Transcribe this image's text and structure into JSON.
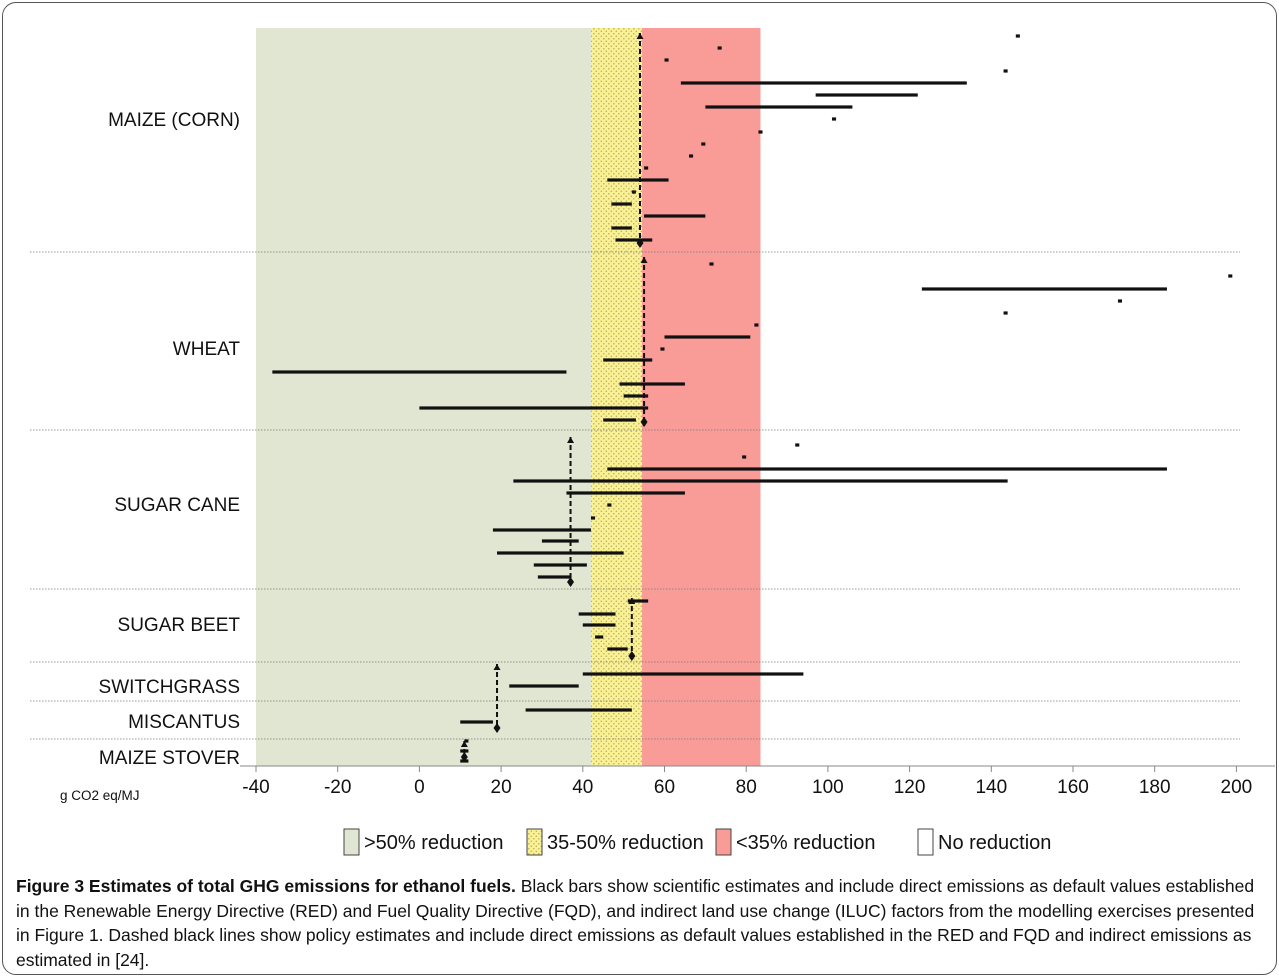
{
  "chart_data": {
    "type": "range-bar",
    "x_axis": {
      "unit_label": "g CO2 eq/MJ",
      "min": -40,
      "max": 200,
      "ticks": [
        -40,
        -20,
        0,
        20,
        40,
        60,
        80,
        100,
        120,
        140,
        160,
        180,
        200
      ]
    },
    "zones": [
      {
        "name": ">50% reduction",
        "from": -40,
        "to": 42,
        "color": "#e0e6d1",
        "pattern": "none"
      },
      {
        "name": "35-50% reduction",
        "from": 42,
        "to": 54.5,
        "color": "#faf195",
        "pattern": "dots"
      },
      {
        "name": "<35% reduction",
        "from": 54.5,
        "to": 83.5,
        "color": "#f99c98",
        "pattern": "none"
      },
      {
        "name": "No reduction",
        "from": 83.5,
        "to": 200,
        "color": "#ffffff",
        "pattern": "none"
      }
    ],
    "groups": [
      {
        "label": "MAIZE (CORN)",
        "policy_value": 54,
        "estimates": [
          {
            "from": 146,
            "to": 147
          },
          {
            "from": 73,
            "to": 74
          },
          {
            "from": 60,
            "to": 61
          },
          {
            "from": 143,
            "to": 144
          },
          {
            "from": 64,
            "to": 134
          },
          {
            "from": 97,
            "to": 122
          },
          {
            "from": 70,
            "to": 106
          },
          {
            "from": 101,
            "to": 102
          },
          {
            "from": 83,
            "to": 84
          },
          {
            "from": 69,
            "to": 70
          },
          {
            "from": 66,
            "to": 67
          },
          {
            "from": 55,
            "to": 56
          },
          {
            "from": 46,
            "to": 61
          },
          {
            "from": 52,
            "to": 53
          },
          {
            "from": 47,
            "to": 52
          },
          {
            "from": 55,
            "to": 70
          },
          {
            "from": 47,
            "to": 52
          },
          {
            "from": 48,
            "to": 57
          }
        ]
      },
      {
        "label": "WHEAT",
        "policy_value": 55,
        "estimates": [
          {
            "from": 71,
            "to": 72
          },
          {
            "from": 198,
            "to": 199
          },
          {
            "from": 123,
            "to": 183
          },
          {
            "from": 171,
            "to": 172
          },
          {
            "from": 143,
            "to": 144
          },
          {
            "from": 82,
            "to": 83
          },
          {
            "from": 60,
            "to": 81
          },
          {
            "from": 59,
            "to": 60
          },
          {
            "from": 45,
            "to": 57
          },
          {
            "from": -36,
            "to": 36
          },
          {
            "from": 49,
            "to": 65
          },
          {
            "from": 50,
            "to": 56
          },
          {
            "from": 0,
            "to": 56
          },
          {
            "from": 45,
            "to": 53
          }
        ]
      },
      {
        "label": "SUGAR CANE",
        "policy_value": 37,
        "estimates": [
          {
            "from": 92,
            "to": 93
          },
          {
            "from": 79,
            "to": 80
          },
          {
            "from": 46,
            "to": 183
          },
          {
            "from": 23,
            "to": 144
          },
          {
            "from": 36,
            "to": 65
          },
          {
            "from": 46,
            "to": 47
          },
          {
            "from": 42,
            "to": 43
          },
          {
            "from": 18,
            "to": 42
          },
          {
            "from": 30,
            "to": 39
          },
          {
            "from": 19,
            "to": 50
          },
          {
            "from": 28,
            "to": 41
          },
          {
            "from": 29,
            "to": 37
          }
        ]
      },
      {
        "label": "SUGAR BEET",
        "policy_value": 52,
        "estimates": [
          {
            "from": 51,
            "to": 56
          },
          {
            "from": 39,
            "to": 48
          },
          {
            "from": 40,
            "to": 48
          },
          {
            "from": 43,
            "to": 45
          },
          {
            "from": 46,
            "to": 51
          }
        ]
      },
      {
        "label": "SWITCHGRASS",
        "policy_value": 19,
        "estimates": [
          {
            "from": 40,
            "to": 94
          },
          {
            "from": 22,
            "to": 39
          }
        ]
      },
      {
        "label": "MISCANTUS",
        "policy_value": 19,
        "estimates": [
          {
            "from": 26,
            "to": 52
          },
          {
            "from": 10,
            "to": 18
          }
        ]
      },
      {
        "label": "MAIZE STOVER",
        "policy_value": 11,
        "estimates": [
          {
            "from": 11,
            "to": 12
          },
          {
            "from": 10,
            "to": 12
          },
          {
            "from": 10,
            "to": 12
          }
        ]
      }
    ]
  },
  "caption": {
    "title": "Figure 3 Estimates of total GHG emissions for ethanol fuels.",
    "text": " Black bars show scientific estimates and include direct emissions as default values established in the Renewable Energy Directive (RED) and Fuel Quality Directive (FQD), and indirect land use change (ILUC) factors from the modelling exercises presented in Figure 1. Dashed black lines show policy estimates and include direct emissions as default values established in the RED and FQD and indirect emissions as estimated in [24]."
  }
}
